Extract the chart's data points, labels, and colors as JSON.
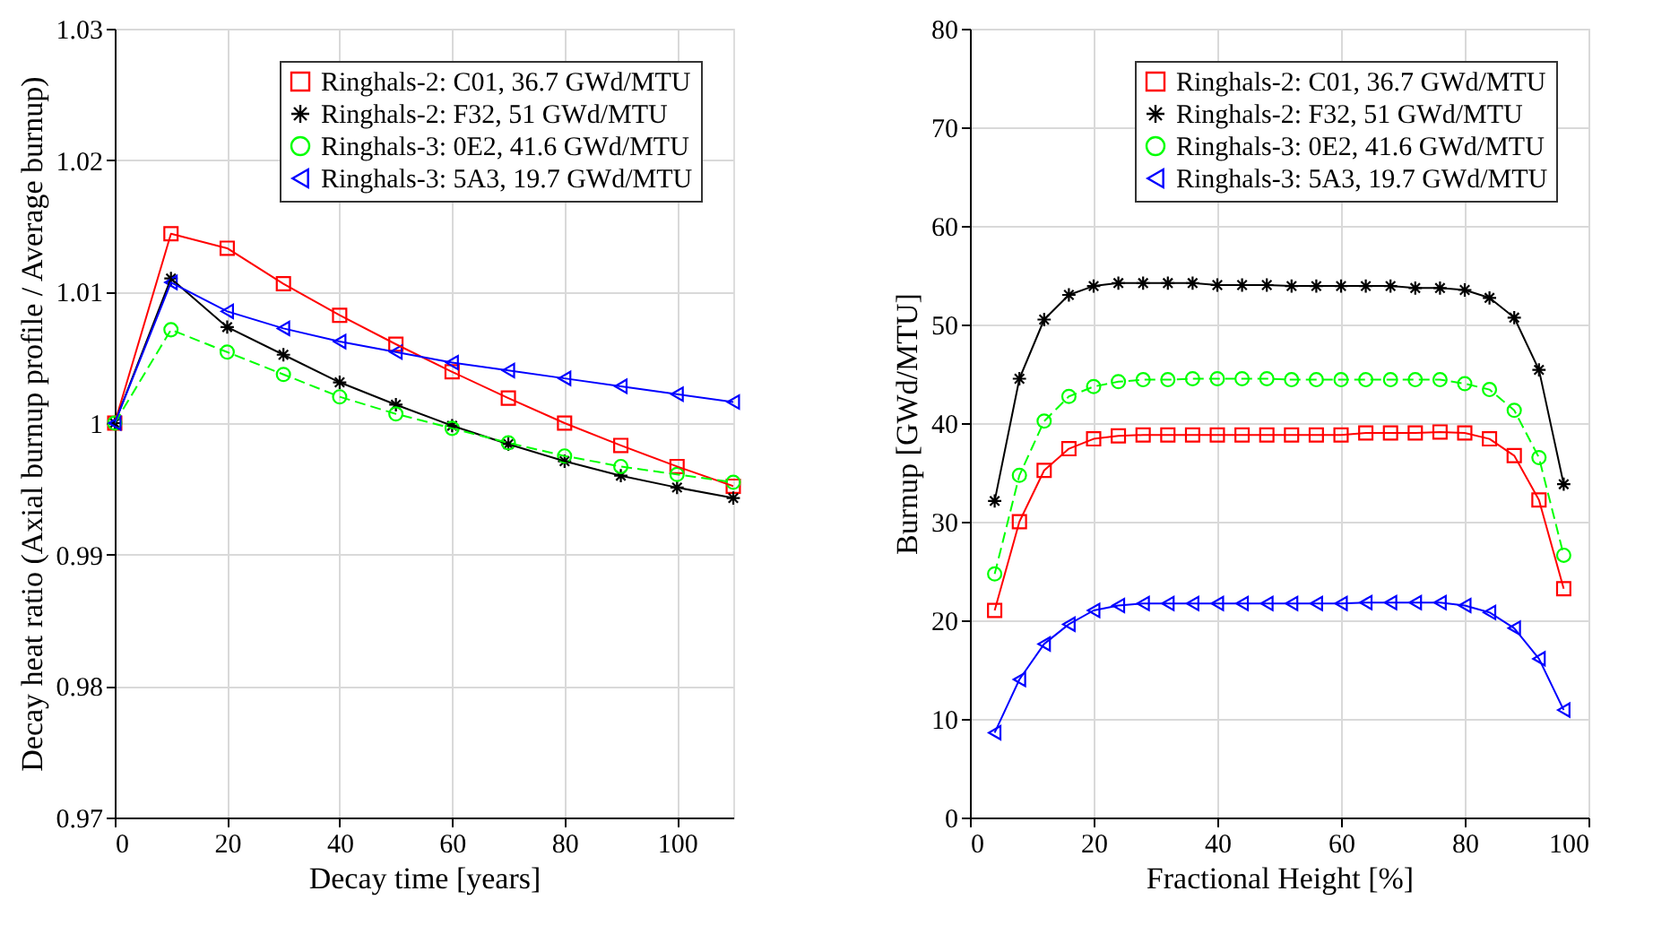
{
  "chart_data": [
    {
      "type": "line",
      "xlabel": "Decay time [years]",
      "ylabel": "Decay heat ratio (Axial burnup profile / Average burnup)",
      "x": [
        0,
        10,
        20,
        30,
        40,
        50,
        60,
        70,
        80,
        90,
        100,
        110
      ],
      "series": [
        {
          "name": "Ringhals-2: C01, 36.7 GWd/MTU",
          "color": "#ff0000",
          "marker": "square",
          "line_style": "solid",
          "values": [
            1.0,
            1.0144,
            1.0133,
            1.0106,
            1.0082,
            1.006,
            1.0039,
            1.0019,
            1.0,
            0.9983,
            0.9967,
            0.9952
          ]
        },
        {
          "name": "Ringhals-2: F32, 51 GWd/MTU",
          "color": "#000000",
          "marker": "cross",
          "line_style": "solid",
          "values": [
            1.0,
            1.011,
            1.0073,
            1.0052,
            1.0031,
            1.0014,
            0.9998,
            0.9984,
            0.9971,
            0.996,
            0.9951,
            0.9943
          ]
        },
        {
          "name": "Ringhals-3: 0E2, 41.6 GWd/MTU",
          "color": "#00ff00",
          "marker": "circle",
          "line_style": "dashed",
          "values": [
            1.0,
            1.0071,
            1.0054,
            1.0037,
            1.002,
            1.0007,
            0.9996,
            0.9985,
            0.9975,
            0.9967,
            0.9961,
            0.9955
          ]
        },
        {
          "name": "Ringhals-3: 5A3, 19.7 GWd/MTU",
          "color": "#0000ff",
          "marker": "triangle",
          "line_style": "solid",
          "values": [
            1.0,
            1.0107,
            1.0085,
            1.0072,
            1.0062,
            1.0054,
            1.0046,
            1.004,
            1.0034,
            1.0028,
            1.0022,
            1.0016
          ]
        }
      ],
      "xlim": [
        0,
        110
      ],
      "xticks": [
        0,
        20,
        40,
        60,
        80,
        100
      ],
      "ylim": [
        0.97,
        1.03
      ],
      "yticks": [
        0.97,
        0.98,
        0.99,
        1,
        1.01,
        1.02,
        1.03
      ],
      "grid": true,
      "legend": "top right"
    },
    {
      "type": "line",
      "xlabel": "Fractional Height [%]",
      "ylabel": "Burnup [GWd/MTU]",
      "x": [
        4,
        8,
        12,
        16,
        20,
        24,
        28,
        32,
        36,
        40,
        44,
        48,
        52,
        56,
        60,
        64,
        68,
        72,
        76,
        80,
        84,
        88,
        92,
        96
      ],
      "series": [
        {
          "name": "Ringhals-2: C01, 36.7 GWd/MTU",
          "color": "#ff0000",
          "marker": "square",
          "line_style": "solid",
          "values": [
            21.0,
            30.0,
            35.2,
            37.4,
            38.4,
            38.7,
            38.8,
            38.8,
            38.8,
            38.8,
            38.8,
            38.8,
            38.8,
            38.8,
            38.8,
            39.0,
            39.0,
            39.0,
            39.1,
            39.0,
            38.4,
            36.7,
            32.2,
            23.2
          ]
        },
        {
          "name": "Ringhals-2: F32, 51 GWd/MTU",
          "color": "#000000",
          "marker": "cross",
          "line_style": "solid",
          "values": [
            32.1,
            44.5,
            50.5,
            53.0,
            53.9,
            54.2,
            54.2,
            54.2,
            54.2,
            54.0,
            54.0,
            54.0,
            53.9,
            53.9,
            53.9,
            53.9,
            53.9,
            53.7,
            53.7,
            53.5,
            52.7,
            50.7,
            45.4,
            33.8
          ]
        },
        {
          "name": "Ringhals-3: 0E2, 41.6 GWd/MTU",
          "color": "#00ff00",
          "marker": "circle",
          "line_style": "dashed",
          "values": [
            24.7,
            34.7,
            40.2,
            42.7,
            43.7,
            44.2,
            44.4,
            44.4,
            44.5,
            44.5,
            44.5,
            44.5,
            44.4,
            44.4,
            44.4,
            44.4,
            44.4,
            44.4,
            44.4,
            44.0,
            43.4,
            41.3,
            36.5,
            26.6
          ]
        },
        {
          "name": "Ringhals-3: 5A3, 19.7 GWd/MTU",
          "color": "#0000ff",
          "marker": "triangle",
          "line_style": "solid",
          "values": [
            8.6,
            14.0,
            17.6,
            19.6,
            21.0,
            21.5,
            21.7,
            21.7,
            21.7,
            21.7,
            21.7,
            21.7,
            21.7,
            21.7,
            21.7,
            21.8,
            21.8,
            21.8,
            21.8,
            21.5,
            20.8,
            19.2,
            16.1,
            10.9
          ]
        }
      ],
      "xlim": [
        0,
        100
      ],
      "xticks": [
        0,
        20,
        40,
        60,
        80,
        100
      ],
      "ylim": [
        0,
        80
      ],
      "yticks": [
        0,
        10,
        20,
        30,
        40,
        50,
        60,
        70,
        80
      ],
      "grid": true,
      "legend": "top right"
    }
  ]
}
